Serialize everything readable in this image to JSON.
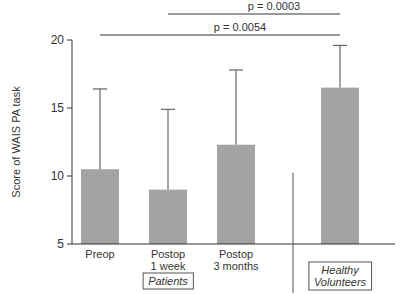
{
  "chart_data": {
    "type": "bar",
    "y_label": "Score of WAIS PA task",
    "categories": [
      "Preop",
      "Postop\n1 week",
      "Postop\n3 months",
      null
    ],
    "values": [
      10.5,
      9.0,
      12.3,
      16.5
    ],
    "errors": [
      5.9,
      5.9,
      5.5,
      3.1
    ],
    "color": "#a3a3a3",
    "ylim": [
      5,
      20
    ],
    "yticks": [
      5,
      10,
      15,
      20
    ],
    "grid": false,
    "groups": [
      {
        "label": "Patients",
        "categories": [
          0,
          1,
          2
        ]
      },
      {
        "label": "Healthy\nVolunteers",
        "categories": [
          3
        ]
      }
    ],
    "annotations": [
      {
        "text": "p = 0.0054",
        "from": 0,
        "to": 3
      },
      {
        "text": "p = 0.0003",
        "from": 1,
        "to": 3
      }
    ]
  }
}
